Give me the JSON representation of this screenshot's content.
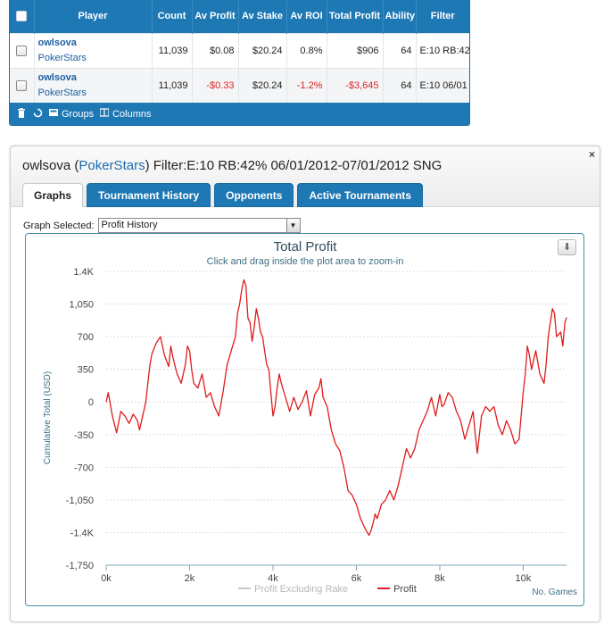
{
  "grid": {
    "columns": [
      "Player",
      "Count",
      "Av Profit",
      "Av Stake",
      "Av ROI",
      "Total Profit",
      "Ability",
      "Filter"
    ],
    "rows": [
      {
        "player": "owlsova",
        "site": "PokerStars",
        "count": "11,039",
        "av_profit": "$0.08",
        "av_stake": "$20.24",
        "av_roi": "0.8%",
        "total_profit": "$906",
        "ability": "64",
        "filter": "E:10 RB:42"
      },
      {
        "player": "owlsova",
        "site": "PokerStars",
        "count": "11,039",
        "av_profit": "-$0.33",
        "av_stake": "$20.24",
        "av_roi": "-1.2%",
        "total_profit": "-$3,645",
        "ability": "64",
        "filter": "E:10 06/01"
      }
    ],
    "toolbar": {
      "trash_icon": "trash-icon",
      "refresh_icon": "refresh-icon",
      "groups_label": "Groups",
      "columns_label": "Columns"
    }
  },
  "panel": {
    "player": "owlsova",
    "site": "PokerStars",
    "filter_text": "Filter:E:10 RB:42% 06/01/2012-07/01/2012 SNG",
    "close_label": "×",
    "tabs": [
      {
        "label": "Graphs",
        "active": true
      },
      {
        "label": "Tournament History",
        "active": false
      },
      {
        "label": "Opponents",
        "active": false
      },
      {
        "label": "Active Tournaments",
        "active": false
      }
    ],
    "graph_selected_label": "Graph Selected:",
    "graph_selected_value": "Profit History"
  },
  "chart_data": {
    "type": "line",
    "title": "Total Profit",
    "subtitle": "Click and drag inside the plot area to zoom-in",
    "ylabel": "Cumulative Total (USD)",
    "xlabel": "No. Games",
    "xlim": [
      0,
      11039
    ],
    "ylim": [
      -1750,
      1400
    ],
    "x_ticks": [
      0,
      2000,
      4000,
      6000,
      8000,
      10000
    ],
    "x_tick_labels": [
      "0k",
      "2k",
      "4k",
      "6k",
      "8k",
      "10k"
    ],
    "y_ticks": [
      1400,
      1050,
      700,
      350,
      0,
      -350,
      -700,
      -1050,
      -1400,
      -1750
    ],
    "y_tick_labels": [
      "1.4K",
      "1,050",
      "700",
      "350",
      "0",
      "-350",
      "-700",
      "-1,050",
      "-1.4K",
      "-1,750"
    ],
    "grid": true,
    "legend": "bottom-center",
    "series": [
      {
        "name": "Profit Excluding Rake",
        "color": "#c8c8c8",
        "points": []
      },
      {
        "name": "Profit",
        "color": "#e01b1b",
        "points": [
          [
            0,
            0
          ],
          [
            50,
            100
          ],
          [
            150,
            -150
          ],
          [
            250,
            -330
          ],
          [
            350,
            -100
          ],
          [
            450,
            -150
          ],
          [
            550,
            -230
          ],
          [
            650,
            -130
          ],
          [
            750,
            -200
          ],
          [
            800,
            -300
          ],
          [
            850,
            -200
          ],
          [
            900,
            -100
          ],
          [
            950,
            0
          ],
          [
            1000,
            200
          ],
          [
            1050,
            400
          ],
          [
            1100,
            520
          ],
          [
            1200,
            630
          ],
          [
            1300,
            700
          ],
          [
            1350,
            600
          ],
          [
            1400,
            500
          ],
          [
            1500,
            380
          ],
          [
            1550,
            600
          ],
          [
            1600,
            480
          ],
          [
            1700,
            300
          ],
          [
            1800,
            200
          ],
          [
            1900,
            400
          ],
          [
            1950,
            600
          ],
          [
            2000,
            550
          ],
          [
            2050,
            350
          ],
          [
            2100,
            200
          ],
          [
            2200,
            150
          ],
          [
            2300,
            300
          ],
          [
            2400,
            50
          ],
          [
            2500,
            100
          ],
          [
            2600,
            -50
          ],
          [
            2700,
            -150
          ],
          [
            2800,
            100
          ],
          [
            2900,
            400
          ],
          [
            3000,
            550
          ],
          [
            3100,
            700
          ],
          [
            3150,
            950
          ],
          [
            3200,
            1050
          ],
          [
            3250,
            1200
          ],
          [
            3300,
            1310
          ],
          [
            3350,
            1250
          ],
          [
            3400,
            900
          ],
          [
            3450,
            850
          ],
          [
            3500,
            650
          ],
          [
            3550,
            800
          ],
          [
            3600,
            1000
          ],
          [
            3650,
            900
          ],
          [
            3700,
            750
          ],
          [
            3750,
            700
          ],
          [
            3800,
            550
          ],
          [
            3850,
            400
          ],
          [
            3900,
            350
          ],
          [
            3950,
            100
          ],
          [
            4000,
            -150
          ],
          [
            4050,
            -50
          ],
          [
            4100,
            150
          ],
          [
            4150,
            300
          ],
          [
            4200,
            200
          ],
          [
            4300,
            50
          ],
          [
            4400,
            -100
          ],
          [
            4500,
            50
          ],
          [
            4600,
            -80
          ],
          [
            4700,
            0
          ],
          [
            4800,
            120
          ],
          [
            4900,
            -150
          ],
          [
            5000,
            80
          ],
          [
            5100,
            150
          ],
          [
            5150,
            250
          ],
          [
            5200,
            50
          ],
          [
            5300,
            -50
          ],
          [
            5400,
            -300
          ],
          [
            5500,
            -450
          ],
          [
            5600,
            -520
          ],
          [
            5700,
            -700
          ],
          [
            5800,
            -950
          ],
          [
            5900,
            -1000
          ],
          [
            6000,
            -1100
          ],
          [
            6100,
            -1250
          ],
          [
            6200,
            -1350
          ],
          [
            6300,
            -1430
          ],
          [
            6350,
            -1380
          ],
          [
            6400,
            -1300
          ],
          [
            6450,
            -1200
          ],
          [
            6500,
            -1250
          ],
          [
            6600,
            -1100
          ],
          [
            6700,
            -1050
          ],
          [
            6800,
            -950
          ],
          [
            6900,
            -1050
          ],
          [
            7000,
            -900
          ],
          [
            7100,
            -700
          ],
          [
            7200,
            -500
          ],
          [
            7300,
            -600
          ],
          [
            7400,
            -500
          ],
          [
            7500,
            -300
          ],
          [
            7600,
            -200
          ],
          [
            7700,
            -100
          ],
          [
            7800,
            50
          ],
          [
            7900,
            -150
          ],
          [
            8000,
            80
          ],
          [
            8050,
            -50
          ],
          [
            8100,
            -30
          ],
          [
            8200,
            100
          ],
          [
            8300,
            50
          ],
          [
            8400,
            -100
          ],
          [
            8500,
            -200
          ],
          [
            8600,
            -400
          ],
          [
            8700,
            -250
          ],
          [
            8800,
            -100
          ],
          [
            8850,
            -350
          ],
          [
            8900,
            -550
          ],
          [
            9000,
            -150
          ],
          [
            9100,
            -50
          ],
          [
            9200,
            -100
          ],
          [
            9300,
            -50
          ],
          [
            9400,
            -250
          ],
          [
            9500,
            -350
          ],
          [
            9600,
            -200
          ],
          [
            9700,
            -300
          ],
          [
            9800,
            -450
          ],
          [
            9900,
            -400
          ],
          [
            10000,
            100
          ],
          [
            10050,
            300
          ],
          [
            10100,
            600
          ],
          [
            10150,
            500
          ],
          [
            10200,
            350
          ],
          [
            10300,
            550
          ],
          [
            10400,
            300
          ],
          [
            10500,
            200
          ],
          [
            10550,
            400
          ],
          [
            10600,
            700
          ],
          [
            10650,
            850
          ],
          [
            10700,
            1000
          ],
          [
            10750,
            950
          ],
          [
            10800,
            700
          ],
          [
            10900,
            750
          ],
          [
            10950,
            600
          ],
          [
            11000,
            850
          ],
          [
            11039,
            906
          ]
        ]
      }
    ]
  }
}
